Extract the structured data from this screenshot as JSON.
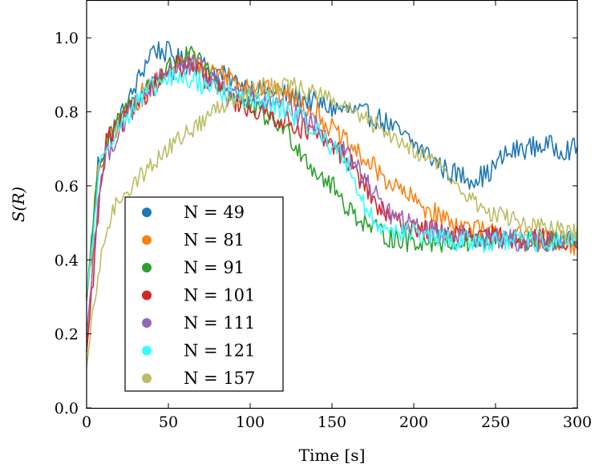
{
  "chart_data": {
    "type": "line",
    "title": "",
    "xlabel": "Time [s]",
    "ylabel": "S(R)",
    "xlim": [
      0,
      300
    ],
    "ylim": [
      0,
      1.1
    ],
    "x_ticks": [
      0,
      50,
      100,
      150,
      200,
      250,
      300
    ],
    "y_ticks": [
      0.0,
      0.2,
      0.4,
      0.6,
      0.8,
      1.0
    ],
    "x_tick_labels": [
      "0",
      "50",
      "100",
      "150",
      "200",
      "250",
      "300"
    ],
    "y_tick_labels": [
      "0.0",
      "0.2",
      "0.4",
      "0.6",
      "0.8",
      "1.0"
    ],
    "grid": false,
    "legend_position": "lower-left",
    "series": [
      {
        "name": "N = 49",
        "color": "#1f77b4",
        "noise": 0.03,
        "points": [
          [
            0,
            0.3
          ],
          [
            3,
            0.45
          ],
          [
            7,
            0.66
          ],
          [
            15,
            0.74
          ],
          [
            25,
            0.82
          ],
          [
            35,
            0.92
          ],
          [
            40,
            0.97
          ],
          [
            50,
            0.96
          ],
          [
            60,
            0.93
          ],
          [
            75,
            0.92
          ],
          [
            90,
            0.88
          ],
          [
            105,
            0.86
          ],
          [
            120,
            0.85
          ],
          [
            135,
            0.83
          ],
          [
            150,
            0.81
          ],
          [
            165,
            0.8
          ],
          [
            180,
            0.78
          ],
          [
            195,
            0.73
          ],
          [
            210,
            0.68
          ],
          [
            220,
            0.64
          ],
          [
            235,
            0.62
          ],
          [
            245,
            0.63
          ],
          [
            255,
            0.68
          ],
          [
            265,
            0.7
          ],
          [
            280,
            0.71
          ],
          [
            290,
            0.7
          ],
          [
            300,
            0.7
          ]
        ]
      },
      {
        "name": "N = 81",
        "color": "#ff7f0e",
        "noise": 0.03,
        "points": [
          [
            0,
            0.29
          ],
          [
            3,
            0.42
          ],
          [
            7,
            0.63
          ],
          [
            15,
            0.74
          ],
          [
            25,
            0.8
          ],
          [
            40,
            0.88
          ],
          [
            55,
            0.93
          ],
          [
            65,
            0.94
          ],
          [
            80,
            0.91
          ],
          [
            95,
            0.88
          ],
          [
            110,
            0.86
          ],
          [
            125,
            0.84
          ],
          [
            140,
            0.8
          ],
          [
            155,
            0.73
          ],
          [
            170,
            0.67
          ],
          [
            185,
            0.61
          ],
          [
            200,
            0.56
          ],
          [
            215,
            0.52
          ],
          [
            230,
            0.49
          ],
          [
            250,
            0.47
          ],
          [
            270,
            0.46
          ],
          [
            290,
            0.45
          ],
          [
            300,
            0.43
          ]
        ]
      },
      {
        "name": "N = 91",
        "color": "#2ca02c",
        "noise": 0.03,
        "points": [
          [
            0,
            0.3
          ],
          [
            3,
            0.45
          ],
          [
            7,
            0.65
          ],
          [
            15,
            0.74
          ],
          [
            25,
            0.81
          ],
          [
            40,
            0.88
          ],
          [
            55,
            0.94
          ],
          [
            65,
            0.95
          ],
          [
            75,
            0.9
          ],
          [
            90,
            0.84
          ],
          [
            105,
            0.8
          ],
          [
            120,
            0.76
          ],
          [
            130,
            0.7
          ],
          [
            140,
            0.64
          ],
          [
            150,
            0.6
          ],
          [
            160,
            0.54
          ],
          [
            170,
            0.5
          ],
          [
            180,
            0.47
          ],
          [
            195,
            0.45
          ],
          [
            215,
            0.45
          ],
          [
            240,
            0.45
          ],
          [
            270,
            0.45
          ],
          [
            300,
            0.45
          ]
        ]
      },
      {
        "name": "N = 101",
        "color": "#d62728",
        "noise": 0.03,
        "points": [
          [
            0,
            0.15
          ],
          [
            3,
            0.3
          ],
          [
            7,
            0.52
          ],
          [
            12,
            0.72
          ],
          [
            20,
            0.76
          ],
          [
            30,
            0.82
          ],
          [
            40,
            0.87
          ],
          [
            55,
            0.92
          ],
          [
            65,
            0.92
          ],
          [
            75,
            0.88
          ],
          [
            90,
            0.83
          ],
          [
            105,
            0.8
          ],
          [
            120,
            0.78
          ],
          [
            135,
            0.75
          ],
          [
            150,
            0.71
          ],
          [
            160,
            0.67
          ],
          [
            170,
            0.6
          ],
          [
            180,
            0.53
          ],
          [
            190,
            0.5
          ],
          [
            200,
            0.49
          ],
          [
            220,
            0.47
          ],
          [
            240,
            0.46
          ],
          [
            270,
            0.46
          ],
          [
            300,
            0.45
          ]
        ]
      },
      {
        "name": "N = 111",
        "color": "#9467bd",
        "noise": 0.03,
        "points": [
          [
            0,
            0.19
          ],
          [
            3,
            0.35
          ],
          [
            7,
            0.57
          ],
          [
            12,
            0.68
          ],
          [
            20,
            0.75
          ],
          [
            30,
            0.82
          ],
          [
            40,
            0.87
          ],
          [
            55,
            0.92
          ],
          [
            65,
            0.93
          ],
          [
            80,
            0.88
          ],
          [
            95,
            0.84
          ],
          [
            110,
            0.82
          ],
          [
            125,
            0.8
          ],
          [
            140,
            0.76
          ],
          [
            150,
            0.72
          ],
          [
            160,
            0.68
          ],
          [
            170,
            0.62
          ],
          [
            180,
            0.55
          ],
          [
            190,
            0.51
          ],
          [
            200,
            0.49
          ],
          [
            220,
            0.47
          ],
          [
            240,
            0.46
          ],
          [
            270,
            0.45
          ],
          [
            300,
            0.45
          ]
        ]
      },
      {
        "name": "N = 121",
        "color": "#33ffff",
        "noise": 0.03,
        "points": [
          [
            0,
            0.31
          ],
          [
            3,
            0.42
          ],
          [
            7,
            0.62
          ],
          [
            12,
            0.72
          ],
          [
            20,
            0.76
          ],
          [
            30,
            0.82
          ],
          [
            40,
            0.86
          ],
          [
            50,
            0.89
          ],
          [
            60,
            0.89
          ],
          [
            75,
            0.87
          ],
          [
            90,
            0.84
          ],
          [
            105,
            0.83
          ],
          [
            120,
            0.81
          ],
          [
            135,
            0.77
          ],
          [
            150,
            0.71
          ],
          [
            160,
            0.66
          ],
          [
            165,
            0.6
          ],
          [
            172,
            0.52
          ],
          [
            180,
            0.49
          ],
          [
            190,
            0.48
          ],
          [
            210,
            0.46
          ],
          [
            230,
            0.45
          ],
          [
            260,
            0.45
          ],
          [
            300,
            0.45
          ]
        ]
      },
      {
        "name": "N = 157",
        "color": "#bcbd62",
        "noise": 0.025,
        "points": [
          [
            0,
            0.11
          ],
          [
            3,
            0.22
          ],
          [
            7,
            0.35
          ],
          [
            12,
            0.48
          ],
          [
            20,
            0.57
          ],
          [
            30,
            0.61
          ],
          [
            40,
            0.66
          ],
          [
            50,
            0.7
          ],
          [
            60,
            0.74
          ],
          [
            70,
            0.77
          ],
          [
            80,
            0.81
          ],
          [
            95,
            0.85
          ],
          [
            110,
            0.87
          ],
          [
            125,
            0.87
          ],
          [
            140,
            0.85
          ],
          [
            155,
            0.82
          ],
          [
            170,
            0.78
          ],
          [
            185,
            0.74
          ],
          [
            200,
            0.7
          ],
          [
            215,
            0.66
          ],
          [
            230,
            0.58
          ],
          [
            245,
            0.53
          ],
          [
            260,
            0.51
          ],
          [
            275,
            0.49
          ],
          [
            290,
            0.48
          ],
          [
            300,
            0.47
          ]
        ]
      }
    ]
  }
}
